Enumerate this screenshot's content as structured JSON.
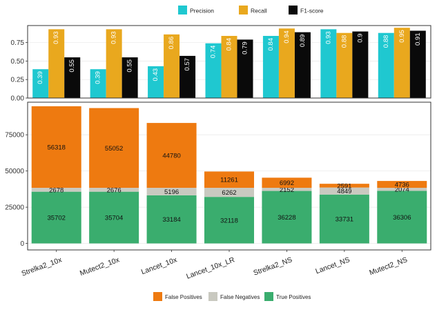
{
  "chart_data": [
    {
      "type": "bar",
      "subtype": "grouped",
      "title": "",
      "xlabel": "",
      "ylabel": "",
      "ylim": [
        0,
        1
      ],
      "yticks": [
        "0.00",
        "0.25",
        "0.50",
        "0.75"
      ],
      "categories": [
        "Strelka2_10x",
        "Mutect2_10x",
        "Lancet_10x",
        "Lancet_10x_LR",
        "Strelka2_NS",
        "Lancet_NS",
        "Mutect2_NS"
      ],
      "legend_position": "top",
      "series": [
        {
          "name": "Precision",
          "color": "#1fc8d0",
          "values": [
            0.39,
            0.39,
            0.43,
            0.74,
            0.84,
            0.93,
            0.88
          ],
          "labels": [
            "0.39",
            "0.39",
            "0.43",
            "0.74",
            "0.84",
            "0.93",
            "0.88"
          ]
        },
        {
          "name": "Recall",
          "color": "#e9a81e",
          "values": [
            0.93,
            0.93,
            0.86,
            0.84,
            0.94,
            0.88,
            0.95
          ],
          "labels": [
            "0.93",
            "0.93",
            "0.86",
            "0.84",
            "0.94",
            "0.88",
            "0.95"
          ]
        },
        {
          "name": "F1-score",
          "color": "#0a0a0a",
          "values": [
            0.55,
            0.55,
            0.57,
            0.79,
            0.89,
            0.9,
            0.91
          ],
          "labels": [
            "0.55",
            "0.55",
            "0.57",
            "0.79",
            "0.89",
            "0.9",
            "0.91"
          ]
        }
      ]
    },
    {
      "type": "bar",
      "subtype": "stacked",
      "title": "",
      "xlabel": "",
      "ylabel": "",
      "ylim": [
        0,
        95000
      ],
      "yticks": [
        "0",
        "25000",
        "50000",
        "75000"
      ],
      "categories": [
        "Strelka2_10x",
        "Mutect2_10x",
        "Lancet_10x",
        "Lancet_10x_LR",
        "Strelka2_NS",
        "Lancet_NS",
        "Mutect2_NS"
      ],
      "legend_position": "bottom",
      "series": [
        {
          "name": "True Positives",
          "color": "#3aad6e",
          "values": [
            35702,
            35704,
            33184,
            32118,
            36228,
            33731,
            36306
          ]
        },
        {
          "name": "False Negatives",
          "color": "#c9c9c0",
          "values": [
            2678,
            2676,
            5196,
            6262,
            2152,
            4849,
            2074
          ]
        },
        {
          "name": "False Positives",
          "color": "#ee7a10",
          "values": [
            56318,
            55052,
            44780,
            11261,
            6992,
            2591,
            4736
          ]
        }
      ],
      "legend_order": [
        "False Positives",
        "False Negatives",
        "True Positives"
      ]
    }
  ]
}
